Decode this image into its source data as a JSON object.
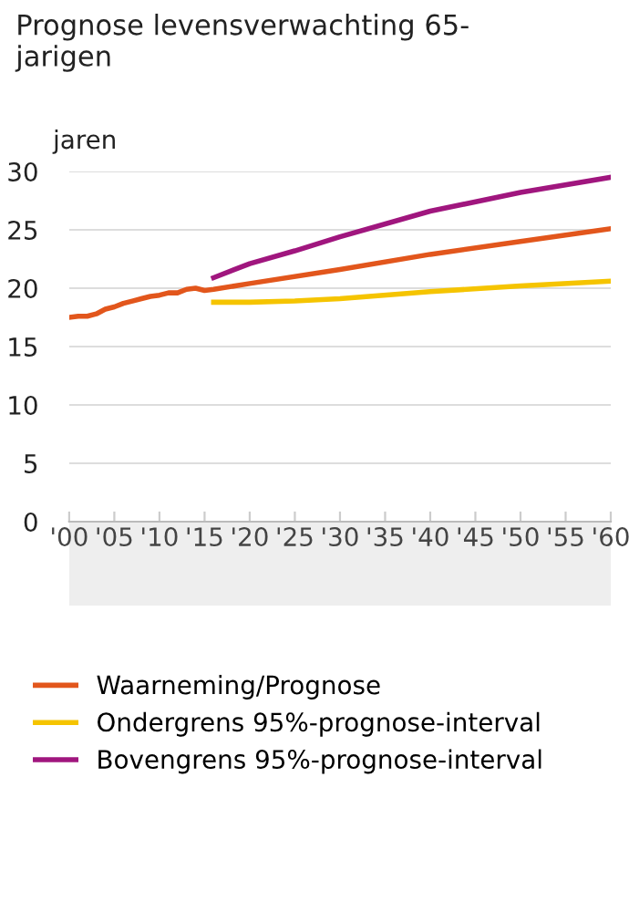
{
  "chart_data": {
    "type": "line",
    "title": "Prognose levensverwachting 65-\njarigen",
    "ylabel": "jaren",
    "series": [
      {
        "name": "Waarneming/Prognose",
        "color": "#e2561c",
        "x": [
          2000,
          2001,
          2002,
          2003,
          2004,
          2005,
          2006,
          2007,
          2008,
          2009,
          2010,
          2011,
          2012,
          2013,
          2014,
          2015,
          2016,
          2020,
          2030,
          2040,
          2050,
          2060
        ],
        "values": [
          17.5,
          17.6,
          17.6,
          17.8,
          18.2,
          18.4,
          18.7,
          18.9,
          19.1,
          19.3,
          19.4,
          19.6,
          19.6,
          19.9,
          20.0,
          19.8,
          19.9,
          20.4,
          21.6,
          22.9,
          24.0,
          25.1
        ]
      },
      {
        "name": "Ondergrens 95%-prognose-interval",
        "color": "#f5c400",
        "x": [
          2016,
          2020,
          2025,
          2030,
          2040,
          2050,
          2060
        ],
        "values": [
          18.8,
          18.8,
          18.9,
          19.1,
          19.7,
          20.2,
          20.6
        ]
      },
      {
        "name": "Bovengrens 95%-prognose-interval",
        "color": "#a0167e",
        "x": [
          2016,
          2020,
          2025,
          2030,
          2040,
          2050,
          2060
        ],
        "values": [
          20.9,
          22.1,
          23.2,
          24.4,
          26.6,
          28.2,
          29.5
        ]
      }
    ],
    "xlim": [
      2000,
      2060
    ],
    "xticks": [
      {
        "value": 2000,
        "label": "'00"
      },
      {
        "value": 2005,
        "label": "'05"
      },
      {
        "value": 2010,
        "label": "'10"
      },
      {
        "value": 2015,
        "label": "'15"
      },
      {
        "value": 2020,
        "label": "'20"
      },
      {
        "value": 2025,
        "label": "'25"
      },
      {
        "value": 2030,
        "label": "'30"
      },
      {
        "value": 2035,
        "label": "'35"
      },
      {
        "value": 2040,
        "label": "'40"
      },
      {
        "value": 2045,
        "label": "'45"
      },
      {
        "value": 2050,
        "label": "'50"
      },
      {
        "value": 2055,
        "label": "'55"
      },
      {
        "value": 2060,
        "label": "'60"
      }
    ],
    "ylim": [
      0,
      30
    ],
    "yticks": [
      0,
      5,
      10,
      15,
      20,
      25,
      30
    ],
    "grid": "y",
    "legend": "bottom",
    "marker": "none",
    "line_style": "solid"
  }
}
